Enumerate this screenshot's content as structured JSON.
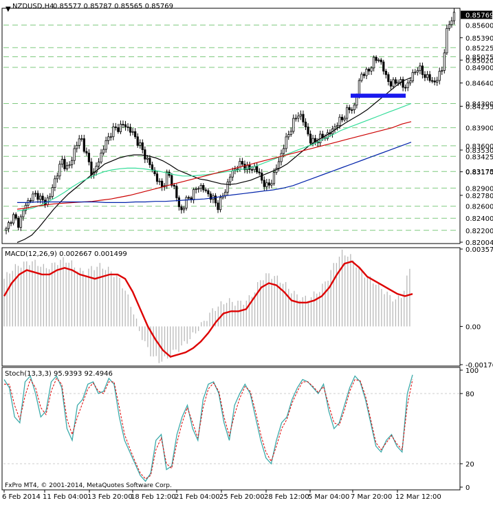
{
  "header": {
    "symbol": "NZDUSD,H4",
    "ohlc": "0.85577 0.85787 0.85565 0.85769"
  },
  "colors": {
    "frame": "#000000",
    "grid": "#7fc97f",
    "candle": "#000000",
    "ma_black": "#000000",
    "ma_green": "#33dd99",
    "ma_red": "#cc0000",
    "ma_blue": "#0022aa",
    "support": "#1a1aee",
    "macd_hist": "#b8b8b8",
    "macd_signal": "#dd0000",
    "stoch_main": "#3aaaaa",
    "stoch_signal": "#dd0000",
    "price_box": "#000000"
  },
  "chart_data": [
    {
      "type": "candlestick",
      "title": "NZDUSD,H4",
      "ylim": [
        0.82004,
        0.85855
      ],
      "y_ticks": [
        "0.85390",
        "0.85020",
        "0.84640",
        "0.84255",
        "0.83530",
        "0.83170",
        "0.82780",
        "0.82004"
      ],
      "level_labels": [
        "0.85600",
        "0.85225",
        "0.85075",
        "0.84900",
        "0.84300",
        "0.83900",
        "0.83600",
        "0.83425",
        "0.83175",
        "0.82900",
        "0.82600",
        "0.82400",
        "0.82200"
      ],
      "current_price": "0.85769",
      "x_tick_labels": [
        "6 Feb 2014",
        "11 Feb 04:00",
        "13 Feb 20:00",
        "18 Feb 12:00",
        "21 Feb 04:00",
        "25 Feb 20:00",
        "28 Feb 12:00",
        "5 Mar 04:00",
        "7 Mar 20:00",
        "12 Mar 12:00"
      ],
      "support_level": 0.8443,
      "close_path": [
        0.822,
        0.8245,
        0.823,
        0.826,
        0.8275,
        0.828,
        0.8265,
        0.8275,
        0.831,
        0.8335,
        0.832,
        0.8355,
        0.8375,
        0.834,
        0.831,
        0.834,
        0.8365,
        0.8385,
        0.839,
        0.8395,
        0.8385,
        0.837,
        0.835,
        0.833,
        0.831,
        0.829,
        0.8315,
        0.829,
        0.825,
        0.827,
        0.828,
        0.8295,
        0.8285,
        0.8275,
        0.826,
        0.828,
        0.831,
        0.8325,
        0.833,
        0.832,
        0.8325,
        0.8305,
        0.829,
        0.831,
        0.834,
        0.837,
        0.8395,
        0.8415,
        0.8395,
        0.8365,
        0.837,
        0.8375,
        0.838,
        0.8395,
        0.8405,
        0.842,
        0.8425,
        0.848,
        0.848,
        0.85,
        0.8505,
        0.8475,
        0.846,
        0.847,
        0.8455,
        0.847,
        0.849,
        0.848,
        0.847,
        0.8465,
        0.8485,
        0.856,
        0.8577
      ],
      "moving_averages": [
        {
          "color_key": "ma_black",
          "values": [
            0.82,
            0.8205,
            0.8212,
            0.8225,
            0.824,
            0.8255,
            0.8268,
            0.828,
            0.829,
            0.83,
            0.831,
            0.832,
            0.833,
            0.8335,
            0.834,
            0.8343,
            0.8345,
            0.8345,
            0.8343,
            0.834,
            0.8335,
            0.8328,
            0.832,
            0.8315,
            0.831,
            0.8305,
            0.8303,
            0.83,
            0.8297,
            0.8296,
            0.8297,
            0.83,
            0.8303,
            0.8308,
            0.8313,
            0.8318,
            0.8323,
            0.833,
            0.834,
            0.835,
            0.836,
            0.8368,
            0.8375,
            0.8382,
            0.839,
            0.8398,
            0.8405,
            0.8412,
            0.842,
            0.843,
            0.844,
            0.845,
            0.846,
            0.8468,
            0.8473
          ]
        },
        {
          "color_key": "ma_green",
          "values": [
            0.8252,
            0.8254,
            0.8257,
            0.8262,
            0.8268,
            0.8275,
            0.8283,
            0.8292,
            0.83,
            0.8306,
            0.8312,
            0.8317,
            0.832,
            0.8322,
            0.8323,
            0.8323,
            0.8322,
            0.832,
            0.8318,
            0.8315,
            0.8312,
            0.831,
            0.831,
            0.8311,
            0.8312,
            0.8314,
            0.8316,
            0.8318,
            0.832,
            0.8322,
            0.8325,
            0.833,
            0.8335,
            0.834,
            0.8345,
            0.835,
            0.8355,
            0.836,
            0.8365,
            0.8372,
            0.8378,
            0.8385,
            0.839,
            0.8395,
            0.84,
            0.8405,
            0.841,
            0.8415,
            0.842,
            0.8425,
            0.843
          ]
        },
        {
          "color_key": "ma_red",
          "values": [
            0.8255,
            0.8257,
            0.826,
            0.8262,
            0.8264,
            0.8265,
            0.8266,
            0.8267,
            0.8268,
            0.827,
            0.8272,
            0.8275,
            0.8278,
            0.8282,
            0.8286,
            0.829,
            0.8294,
            0.8298,
            0.8302,
            0.8306,
            0.831,
            0.8314,
            0.8318,
            0.8322,
            0.8326,
            0.833,
            0.8334,
            0.8338,
            0.8342,
            0.8346,
            0.835,
            0.8354,
            0.8358,
            0.8362,
            0.8366,
            0.837,
            0.8374,
            0.8378,
            0.8382,
            0.8386,
            0.839,
            0.8396,
            0.84
          ]
        },
        {
          "color_key": "ma_blue",
          "values": [
            0.8266,
            0.8266,
            0.8267,
            0.8267,
            0.8267,
            0.8267,
            0.8267,
            0.8267,
            0.8267,
            0.8266,
            0.8266,
            0.8266,
            0.8267,
            0.8267,
            0.8268,
            0.8268,
            0.8269,
            0.827,
            0.8271,
            0.8272,
            0.8274,
            0.8277,
            0.8279,
            0.8281,
            0.8283,
            0.8285,
            0.8287,
            0.829,
            0.8294,
            0.83,
            0.8306,
            0.8312,
            0.8318,
            0.8324,
            0.833,
            0.8336,
            0.8342,
            0.8348,
            0.8354,
            0.836,
            0.8366
          ]
        }
      ]
    },
    {
      "type": "bar",
      "title": "MACD(12,26,9) 0.002667 0.001499",
      "ylim": [
        -0.001765,
        0.003572
      ],
      "y_ticks": [
        "0.003572",
        "0.00",
        "-0.001765"
      ],
      "histogram": [
        0.0022,
        0.0026,
        0.0028,
        0.0029,
        0.003,
        0.0029,
        0.0027,
        0.0028,
        0.003,
        0.0031,
        0.0029,
        0.0026,
        0.0025,
        0.0027,
        0.0028,
        0.0027,
        0.0025,
        0.0022,
        0.0016,
        0.0008,
        -0.0002,
        -0.0009,
        -0.0014,
        -0.0016,
        -0.0015,
        -0.0012,
        -0.001,
        -0.0007,
        -0.0004,
        0.0,
        0.0004,
        0.0008,
        0.001,
        0.0012,
        0.0011,
        0.0011,
        0.0012,
        0.0016,
        0.0022,
        0.0024,
        0.0023,
        0.0021,
        0.0018,
        0.0015,
        0.0013,
        0.0013,
        0.0015,
        0.0018,
        0.0023,
        0.003,
        0.0034,
        0.0033,
        0.0029,
        0.0025,
        0.0022,
        0.002,
        0.0017,
        0.0014,
        0.0012,
        0.0015,
        0.0027
      ],
      "signal": [
        0.0014,
        0.002,
        0.0024,
        0.0026,
        0.0025,
        0.0024,
        0.0024,
        0.0026,
        0.0027,
        0.0026,
        0.0024,
        0.0023,
        0.0022,
        0.0023,
        0.0024,
        0.0024,
        0.0022,
        0.0016,
        0.0008,
        0.0,
        -0.0006,
        -0.0011,
        -0.0014,
        -0.0013,
        -0.0012,
        -0.001,
        -0.0007,
        -0.0003,
        0.0002,
        0.0006,
        0.0007,
        0.0007,
        0.0008,
        0.0013,
        0.0018,
        0.002,
        0.0019,
        0.0016,
        0.0012,
        0.0011,
        0.0011,
        0.0012,
        0.0014,
        0.0018,
        0.0024,
        0.0029,
        0.003,
        0.0027,
        0.0023,
        0.0021,
        0.0019,
        0.0017,
        0.0015,
        0.0014,
        0.0015
      ]
    },
    {
      "type": "line",
      "title": "Stoch(13,3,3) 95.9393 92.4946",
      "ylim": [
        0,
        100
      ],
      "y_ticks": [
        "100",
        "80",
        "20",
        "0"
      ],
      "main": [
        92,
        85,
        60,
        55,
        90,
        95,
        80,
        60,
        65,
        90,
        95,
        85,
        50,
        40,
        70,
        75,
        88,
        90,
        80,
        82,
        93,
        88,
        60,
        40,
        30,
        20,
        10,
        5,
        12,
        40,
        45,
        15,
        18,
        45,
        60,
        70,
        50,
        40,
        75,
        88,
        90,
        80,
        55,
        40,
        70,
        80,
        88,
        80,
        60,
        40,
        25,
        20,
        40,
        55,
        60,
        75,
        85,
        92,
        90,
        85,
        80,
        88,
        65,
        50,
        55,
        70,
        85,
        95,
        90,
        75,
        55,
        35,
        30,
        40,
        45,
        35,
        30,
        80,
        96
      ],
      "signal": [
        88,
        88,
        70,
        58,
        78,
        92,
        85,
        68,
        62,
        82,
        93,
        88,
        58,
        45,
        60,
        72,
        84,
        89,
        82,
        80,
        90,
        90,
        68,
        45,
        33,
        22,
        12,
        7,
        10,
        32,
        42,
        20,
        16,
        38,
        55,
        68,
        55,
        42,
        68,
        84,
        89,
        82,
        60,
        44,
        62,
        76,
        86,
        82,
        65,
        45,
        30,
        22,
        35,
        50,
        58,
        72,
        82,
        90,
        90,
        86,
        81,
        86,
        70,
        55,
        53,
        66,
        82,
        92,
        91,
        78,
        58,
        38,
        32,
        38,
        44,
        37,
        32,
        70,
        92
      ]
    }
  ],
  "footer": {
    "copyright": "FxPro MT4, © 2001-2014, MetaQuotes Software Corp."
  }
}
